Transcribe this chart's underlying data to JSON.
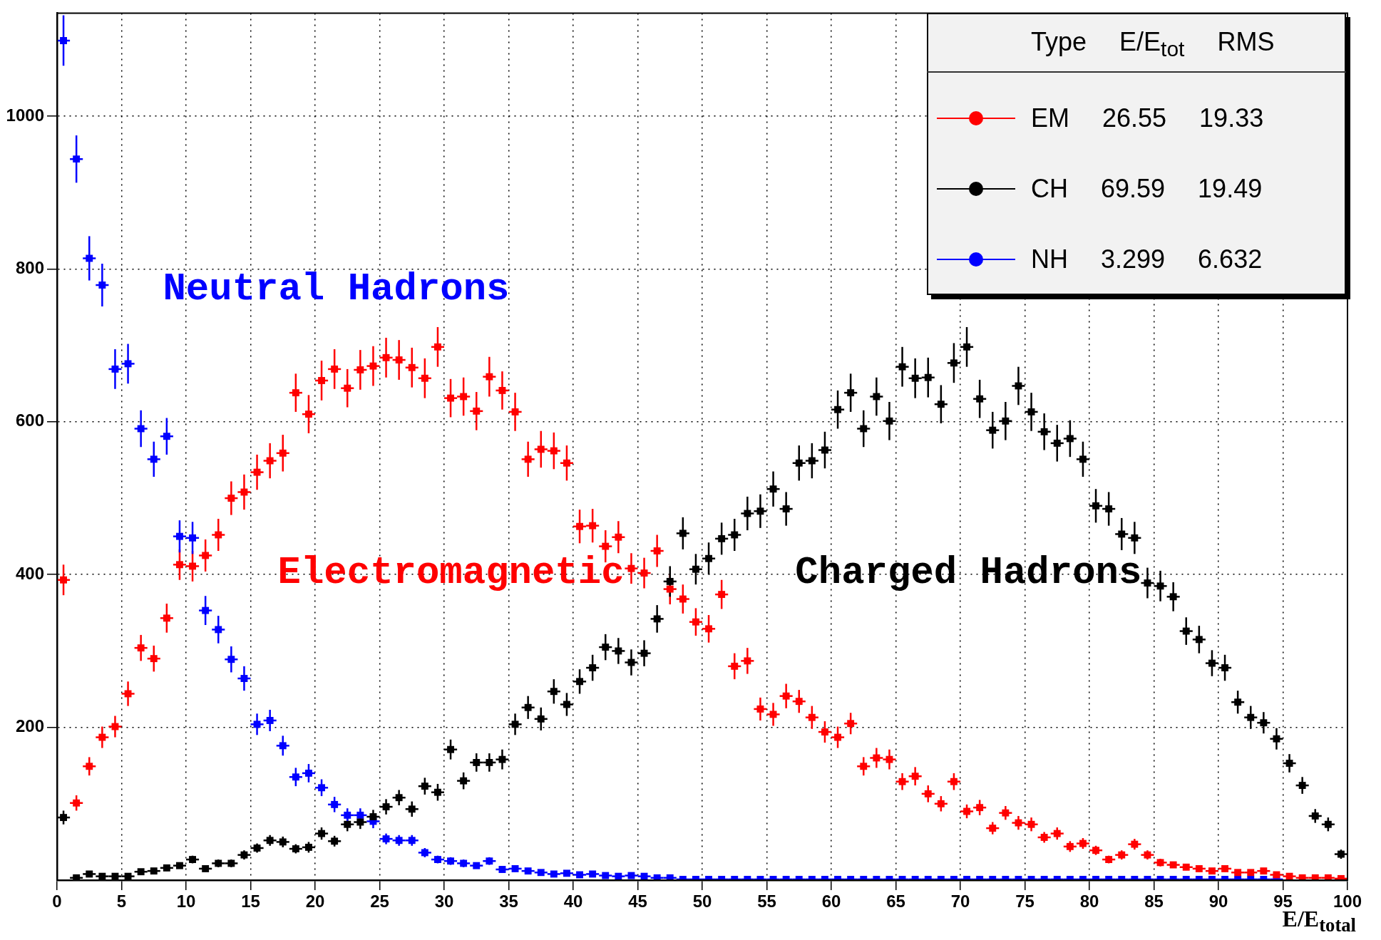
{
  "chart_data": {
    "type": "scatter",
    "xlabel": "E/E$_{total}$",
    "legend_title": "Type E/E$_{tot}$ RMS",
    "legend": "top right",
    "marker": "square",
    "grid": true,
    "xlim": [
      0,
      100
    ],
    "ylim": [
      0,
      1135
    ],
    "xticks": [
      0,
      5,
      10,
      15,
      20,
      25,
      30,
      35,
      40,
      45,
      50,
      55,
      60,
      65,
      70,
      75,
      80,
      85,
      90,
      95,
      100
    ],
    "yticks": [
      200,
      400,
      600,
      800,
      1000
    ],
    "annotations": [
      "Neutral Hadrons",
      "Electromagnetic",
      "Charged Hadrons"
    ],
    "x": [
      0.5,
      1.5,
      2.5,
      3.5,
      4.5,
      5.5,
      6.5,
      7.5,
      8.5,
      9.5,
      10.5,
      11.5,
      12.5,
      13.5,
      14.5,
      15.5,
      16.5,
      17.5,
      18.5,
      19.5,
      20.5,
      21.5,
      22.5,
      23.5,
      24.5,
      25.5,
      26.5,
      27.5,
      28.5,
      29.5,
      30.5,
      31.5,
      32.5,
      33.5,
      34.5,
      35.5,
      36.5,
      37.5,
      38.5,
      39.5,
      40.5,
      41.5,
      42.5,
      43.5,
      44.5,
      45.5,
      46.5,
      47.5,
      48.5,
      49.5,
      50.5,
      51.5,
      52.5,
      53.5,
      54.5,
      55.5,
      56.5,
      57.5,
      58.5,
      59.5,
      60.5,
      61.5,
      62.5,
      63.5,
      64.5,
      65.5,
      66.5,
      67.5,
      68.5,
      69.5,
      70.5,
      71.5,
      72.5,
      73.5,
      74.5,
      75.5,
      76.5,
      77.5,
      78.5,
      79.5,
      80.5,
      81.5,
      82.5,
      83.5,
      84.5,
      85.5,
      86.5,
      87.5,
      88.5,
      89.5,
      90.5,
      91.5,
      92.5,
      93.5,
      94.5,
      95.5,
      96.5,
      97.5,
      98.5,
      99.5
    ],
    "series": [
      {
        "name": "EM 26.55 19.33",
        "color": "#ff0000",
        "values": [
          393,
          101,
          149,
          187,
          201,
          244,
          304,
          290,
          343,
          413,
          411,
          425,
          452,
          500,
          508,
          534,
          549,
          559,
          638,
          610,
          654,
          669,
          644,
          668,
          673,
          684,
          681,
          671,
          657,
          698,
          631,
          633,
          614,
          659,
          641,
          613,
          551,
          564,
          562,
          546,
          463,
          464,
          437,
          449,
          408,
          402,
          431,
          381,
          368,
          338,
          329,
          374,
          280,
          287,
          224,
          217,
          241,
          234,
          213,
          194,
          187,
          205,
          149,
          160,
          158,
          129,
          136,
          113,
          100,
          129,
          90,
          95,
          68,
          88,
          75,
          73,
          56,
          61,
          44,
          48,
          39,
          27,
          33,
          47,
          33,
          23,
          20,
          17,
          15,
          12,
          15,
          10,
          10,
          12,
          7,
          5,
          3,
          3,
          3,
          2
        ],
        "errors": [
          20,
          10,
          12,
          14,
          14,
          16,
          17,
          17,
          19,
          20,
          20,
          21,
          21,
          22,
          23,
          23,
          23,
          24,
          25,
          25,
          26,
          26,
          25,
          26,
          26,
          26,
          26,
          26,
          26,
          26,
          25,
          25,
          25,
          26,
          25,
          25,
          23,
          24,
          24,
          23,
          22,
          22,
          21,
          21,
          20,
          20,
          21,
          20,
          19,
          18,
          18,
          19,
          17,
          17,
          15,
          15,
          16,
          15,
          15,
          14,
          14,
          14,
          12,
          13,
          13,
          11,
          12,
          11,
          10,
          11,
          9,
          10,
          8,
          9,
          9,
          9,
          7,
          8,
          7,
          7,
          6,
          5,
          6,
          7,
          6,
          5,
          4,
          4,
          4,
          3,
          4,
          3,
          3,
          3,
          3,
          2,
          2,
          2,
          2,
          1
        ],
        "xerrors": [
          0.5,
          0.5,
          0.5,
          0.5,
          0.5,
          0.5,
          0.5,
          0.5,
          0.5,
          0.5,
          0.5,
          0.5,
          0.5,
          0.5,
          0.5,
          0.5,
          0.5,
          0.5,
          0.5,
          0.5,
          0.5,
          0.5,
          0.5,
          0.5,
          0.5,
          0.5,
          0.5,
          0.5,
          0.5,
          0.5,
          0.5,
          0.5,
          0.5,
          0.5,
          0.5,
          0.5,
          0.5,
          0.5,
          0.5,
          0.5,
          0.5,
          0.5,
          0.5,
          0.5,
          0.5,
          0.5,
          0.5,
          0.5,
          0.5,
          0.5,
          0.5,
          0.5,
          0.5,
          0.5,
          0.5,
          0.5,
          0.5,
          0.5,
          0.5,
          0.5,
          0.5,
          0.5,
          0.5,
          0.5,
          0.5,
          0.5,
          0.5,
          0.5,
          0.5,
          0.5,
          0.5,
          0.5,
          0.5,
          0.5,
          0.5,
          0.5,
          0.5,
          0.5,
          0.5,
          0.5,
          0.5,
          0.5,
          0.5,
          0.5,
          0.5,
          0.5,
          0.5,
          0.5,
          0.5,
          0.5,
          0.5,
          0.5,
          0.5,
          0.5,
          0.5,
          0.5,
          0.5,
          0.5,
          0.5,
          0.5
        ]
      },
      {
        "name": "CH 69.59 19.49",
        "color": "#000000",
        "values": [
          82,
          3,
          8,
          5,
          5,
          5,
          11,
          12,
          16,
          19,
          27,
          15,
          22,
          22,
          33,
          42,
          52,
          50,
          41,
          43,
          61,
          51,
          73,
          76,
          83,
          96,
          108,
          93,
          123,
          115,
          171,
          130,
          154,
          154,
          158,
          204,
          226,
          211,
          247,
          230,
          260,
          278,
          305,
          300,
          285,
          297,
          342,
          391,
          454,
          407,
          421,
          447,
          452,
          480,
          483,
          512,
          486,
          546,
          549,
          563,
          616,
          638,
          591,
          633,
          601,
          672,
          657,
          658,
          623,
          677,
          698,
          630,
          589,
          601,
          647,
          613,
          587,
          572,
          578,
          551,
          490,
          486,
          453,
          448,
          389,
          385,
          371,
          326,
          315,
          284,
          278,
          233,
          213,
          206,
          185,
          153,
          124,
          84,
          73,
          34
        ],
        "errors": [
          9,
          2,
          3,
          2,
          2,
          2,
          3,
          3,
          4,
          4,
          5,
          4,
          5,
          5,
          6,
          6,
          7,
          7,
          6,
          7,
          8,
          7,
          9,
          9,
          9,
          10,
          10,
          10,
          11,
          11,
          13,
          11,
          12,
          12,
          13,
          14,
          15,
          15,
          16,
          15,
          16,
          17,
          17,
          17,
          17,
          17,
          18,
          20,
          21,
          20,
          21,
          21,
          21,
          22,
          22,
          23,
          22,
          23,
          23,
          24,
          25,
          25,
          24,
          25,
          25,
          26,
          26,
          26,
          25,
          26,
          26,
          25,
          24,
          25,
          25,
          25,
          24,
          24,
          24,
          23,
          22,
          22,
          21,
          21,
          20,
          20,
          19,
          18,
          18,
          17,
          17,
          15,
          15,
          14,
          14,
          12,
          11,
          9,
          9,
          6
        ],
        "xerrors": [
          0.5,
          0.5,
          0.5,
          0.5,
          0.5,
          0.5,
          0.5,
          0.5,
          0.5,
          0.5,
          0.5,
          0.5,
          0.5,
          0.5,
          0.5,
          0.5,
          0.5,
          0.5,
          0.5,
          0.5,
          0.5,
          0.5,
          0.5,
          0.5,
          0.5,
          0.5,
          0.5,
          0.5,
          0.5,
          0.5,
          0.5,
          0.5,
          0.5,
          0.5,
          0.5,
          0.5,
          0.5,
          0.5,
          0.5,
          0.5,
          0.5,
          0.5,
          0.5,
          0.5,
          0.5,
          0.5,
          0.5,
          0.5,
          0.5,
          0.5,
          0.5,
          0.5,
          0.5,
          0.5,
          0.5,
          0.5,
          0.5,
          0.5,
          0.5,
          0.5,
          0.5,
          0.5,
          0.5,
          0.5,
          0.5,
          0.5,
          0.5,
          0.5,
          0.5,
          0.5,
          0.5,
          0.5,
          0.5,
          0.5,
          0.5,
          0.5,
          0.5,
          0.5,
          0.5,
          0.5,
          0.5,
          0.5,
          0.5,
          0.5,
          0.5,
          0.5,
          0.5,
          0.5,
          0.5,
          0.5,
          0.5,
          0.5,
          0.5,
          0.5,
          0.5,
          0.5,
          0.5,
          0.5,
          0.5,
          0.5
        ]
      },
      {
        "name": "NH 3.299 6.632",
        "color": "#0000ff",
        "values": [
          1099,
          944,
          814,
          779,
          669,
          676,
          591,
          551,
          581,
          450,
          448,
          353,
          328,
          289,
          264,
          204,
          209,
          176,
          135,
          140,
          121,
          99,
          85,
          85,
          77,
          54,
          52,
          52,
          36,
          27,
          25,
          22,
          19,
          25,
          14,
          15,
          12,
          10,
          8,
          9,
          7,
          8,
          6,
          5,
          6,
          5,
          3,
          3,
          1,
          1,
          1,
          1,
          1,
          1,
          1,
          1,
          1,
          1,
          1,
          1,
          1,
          1,
          1,
          1,
          1,
          1,
          1,
          1,
          1,
          1,
          1,
          1,
          1,
          1,
          1,
          1,
          1,
          1,
          1,
          1,
          1,
          1,
          1,
          1,
          1,
          1,
          1,
          1,
          1,
          1,
          1,
          1,
          1,
          1,
          1,
          null,
          null,
          null,
          null,
          null
        ],
        "errors": [
          33,
          31,
          29,
          28,
          26,
          26,
          24,
          23,
          24,
          21,
          21,
          19,
          18,
          17,
          16,
          14,
          14,
          13,
          12,
          12,
          11,
          10,
          9,
          9,
          9,
          7,
          7,
          7,
          6,
          5,
          5,
          5,
          4,
          5,
          4,
          4,
          3,
          3,
          3,
          3,
          3,
          3,
          2,
          2,
          2,
          2,
          2,
          2,
          1,
          1,
          1,
          1,
          1,
          1,
          1,
          1,
          1,
          1,
          1,
          1,
          1,
          1,
          1,
          1,
          1,
          1,
          1,
          1,
          1,
          1,
          1,
          1,
          1,
          1,
          1,
          1,
          1,
          1,
          1,
          1,
          1,
          1,
          1,
          1,
          1,
          1,
          1,
          1,
          1,
          1,
          1,
          1,
          1,
          1,
          1,
          null,
          null,
          null,
          null,
          null
        ],
        "xerrors": [
          0.5,
          0.5,
          0.5,
          0.5,
          0.5,
          0.5,
          0.5,
          0.5,
          0.5,
          0.5,
          0.5,
          0.5,
          0.5,
          0.5,
          0.5,
          0.5,
          0.5,
          0.5,
          0.5,
          0.5,
          0.5,
          0.5,
          0.5,
          0.5,
          0.5,
          0.5,
          0.5,
          0.5,
          0.5,
          0.5,
          0.5,
          0.5,
          0.5,
          0.5,
          0.5,
          0.5,
          0.5,
          0.5,
          0.5,
          0.5,
          0.5,
          0.5,
          0.5,
          0.5,
          0.5,
          0.5,
          0.5,
          0.5,
          0.5,
          0.5,
          0.5,
          0.5,
          0.5,
          0.5,
          0.5,
          0.5,
          0.5,
          0.5,
          0.5,
          0.5,
          0.5,
          0.5,
          0.5,
          0.5,
          0.5,
          0.5,
          0.5,
          0.5,
          0.5,
          0.5,
          0.5,
          0.5,
          0.5,
          0.5,
          0.5,
          0.5,
          0.5,
          0.5,
          0.5,
          0.5,
          0.5,
          0.5,
          0.5,
          0.5,
          0.5,
          0.5,
          0.5,
          0.5,
          0.5,
          0.5,
          0.5,
          0.5,
          0.5,
          0.5,
          0.5,
          null,
          null,
          null,
          null,
          null
        ]
      }
    ]
  }
}
